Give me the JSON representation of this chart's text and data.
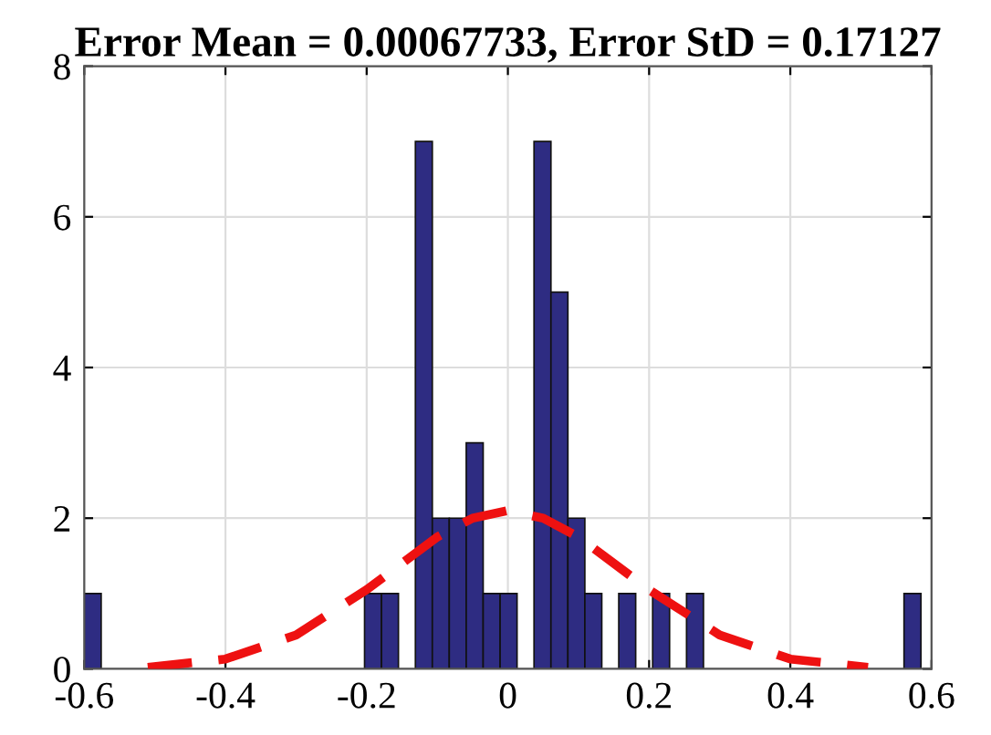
{
  "chart_data": {
    "type": "histogram",
    "title": "Error Mean = 0.00067733, Error StD = 0.17127",
    "xlim": [
      -0.6,
      0.6
    ],
    "xticks": [
      -0.6,
      -0.4,
      -0.2,
      0,
      0.2,
      0.4,
      0.6
    ],
    "ylim": [
      0,
      8
    ],
    "yticks": [
      0,
      2,
      4,
      6,
      8
    ],
    "grid": true,
    "series": [
      {
        "color": "#2e2c82",
        "bins": [
          -0.6,
          -0.576,
          -0.203,
          -0.179,
          -0.155,
          -0.131,
          -0.107,
          -0.083,
          -0.059,
          -0.035,
          -0.011,
          0.013,
          0.037,
          0.061,
          0.085,
          0.109,
          0.133,
          0.157,
          0.181,
          0.205,
          0.229,
          0.253,
          0.277,
          0.561,
          0.585
        ],
        "values": [
          1,
          0,
          1,
          1,
          0,
          7,
          2,
          2,
          3,
          1,
          1,
          0,
          7,
          5,
          2,
          1,
          0,
          1,
          0,
          1,
          0,
          1,
          0,
          1
        ]
      },
      {
        "type": "line",
        "color": "#ee1111",
        "line_style": "dashed",
        "x": [
          -0.51,
          -0.4,
          -0.3,
          -0.2,
          -0.1,
          -0.05,
          0,
          0.05,
          0.1,
          0.2,
          0.3,
          0.4,
          0.51
        ],
        "values": [
          0.02,
          0.13,
          0.45,
          1.05,
          1.75,
          2.0,
          2.1,
          2.0,
          1.75,
          1.05,
          0.45,
          0.13,
          0.02
        ]
      }
    ]
  }
}
